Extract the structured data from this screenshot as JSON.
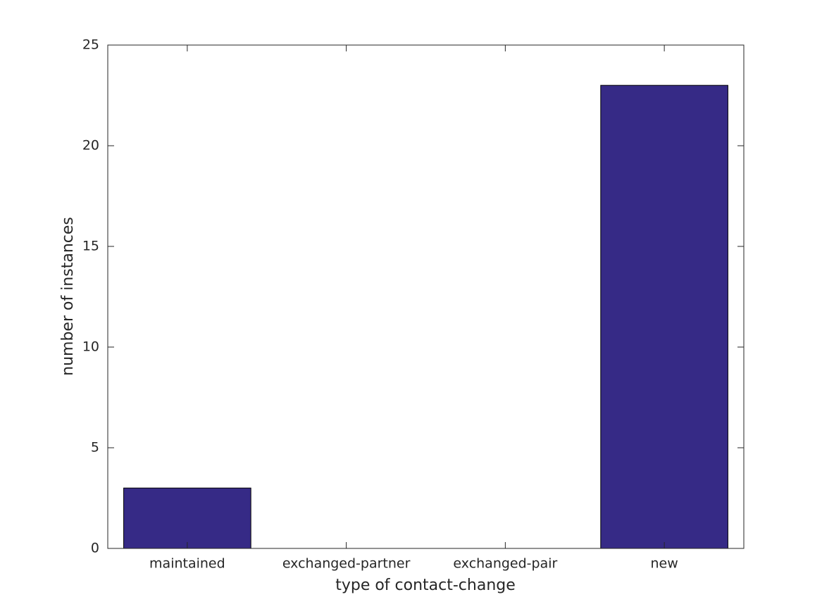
{
  "chart_data": {
    "type": "bar",
    "xlabel": "type of contact-change",
    "ylabel": "number of instances",
    "categories": [
      "maintained",
      "exchanged-partner",
      "exchanged-pair",
      "new"
    ],
    "values": [
      3,
      0,
      0,
      23
    ],
    "color": "#362a86",
    "ylim": [
      0,
      25
    ],
    "yticks": [
      0,
      5,
      10,
      15,
      20,
      25
    ],
    "grid": false
  }
}
